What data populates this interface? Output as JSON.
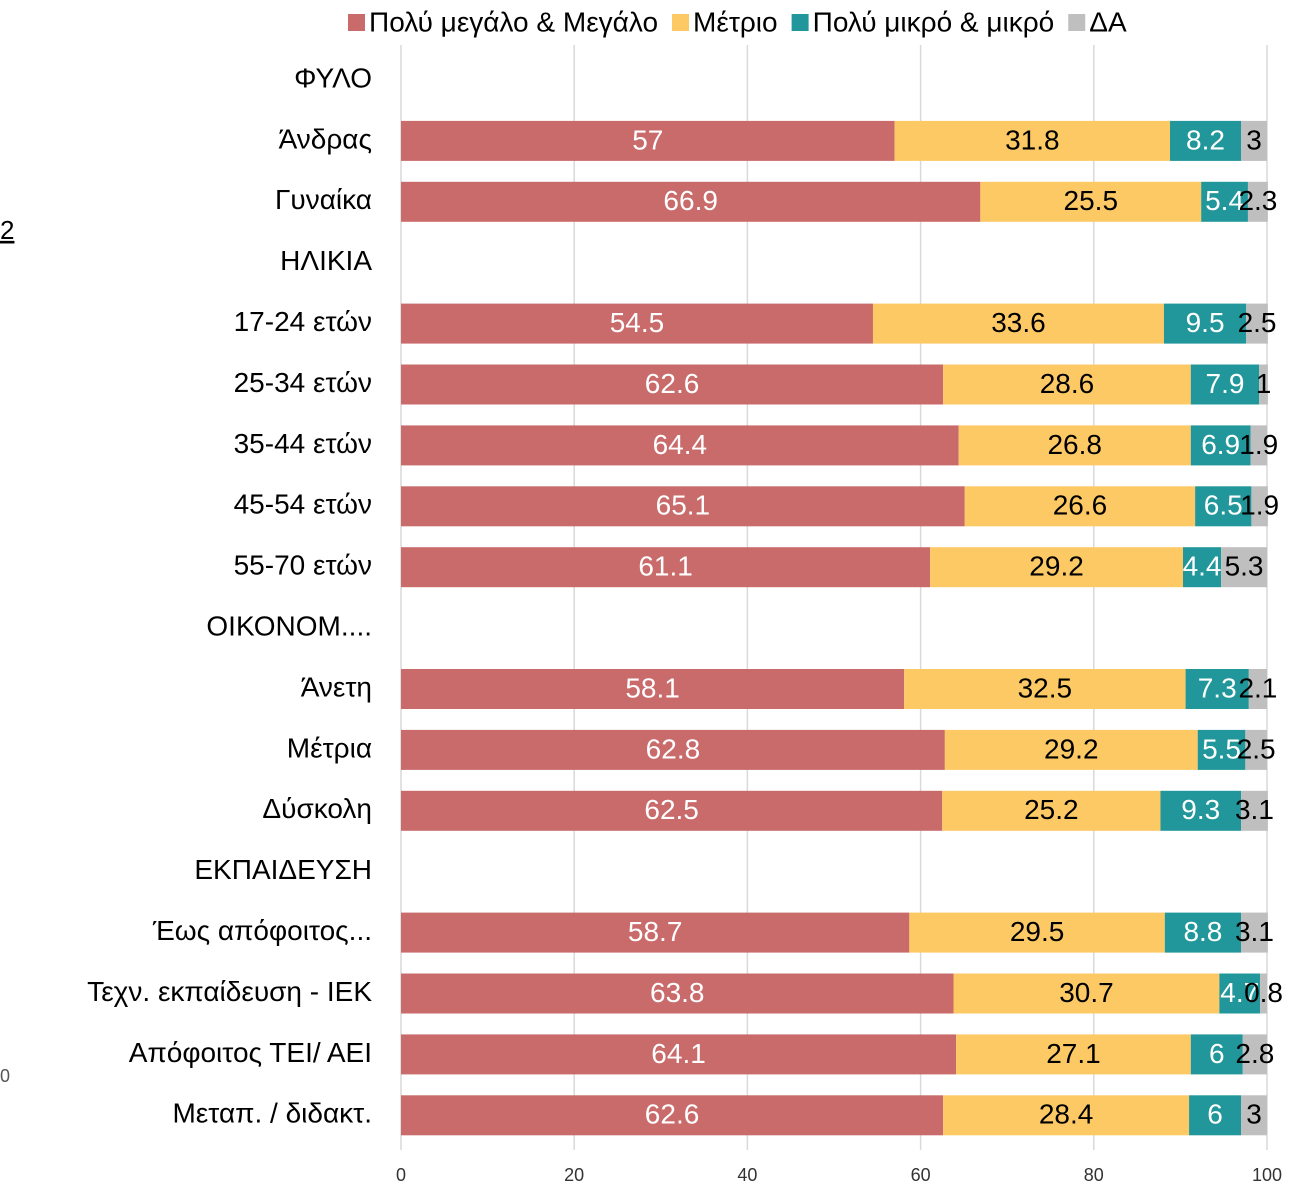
{
  "chart_data": {
    "type": "stacked-barh",
    "categories": [
      "ΦΥΛΟ",
      "Άνδρας",
      "Γυναίκα",
      "ΗΛΙΚΙΑ",
      "17-24 ετών",
      "25-34 ετών",
      "35-44 ετών",
      "45-54 ετών",
      "55-70 ετών",
      "ΟΙΚΟΝΟΜ....",
      "Άνετη",
      "Μέτρια",
      "Δύσκολη",
      "ΕΚΠΑΙΔΕΥΣΗ",
      "Έως απόφοιτος...",
      "Τεχν. εκπαίδευση - ΙΕΚ",
      "Απόφοιτος ΤΕΙ/ ΑΕΙ",
      "Μεταπ. / διδακτ."
    ],
    "series": [
      {
        "name": "Πολύ μεγάλο & Μεγάλο",
        "color": "#c96b6b",
        "label_color": "#ffffff",
        "values": [
          null,
          57,
          66.9,
          null,
          54.5,
          62.6,
          64.4,
          65.1,
          61.1,
          null,
          58.1,
          62.8,
          62.5,
          null,
          58.7,
          63.8,
          64.1,
          62.6
        ]
      },
      {
        "name": "Μέτριο",
        "color": "#fdc965",
        "label_color": "#000000",
        "values": [
          null,
          31.8,
          25.5,
          null,
          33.6,
          28.6,
          26.8,
          26.6,
          29.2,
          null,
          32.5,
          29.2,
          25.2,
          null,
          29.5,
          30.7,
          27.1,
          28.4
        ]
      },
      {
        "name": "Πολύ μικρό & μικρό",
        "color": "#21979b",
        "label_color": "#ffffff",
        "values": [
          null,
          8.2,
          5.4,
          null,
          9.5,
          7.9,
          6.9,
          6.5,
          4.4,
          null,
          7.3,
          5.5,
          9.3,
          null,
          8.8,
          4.7,
          6,
          6
        ]
      },
      {
        "name": "ΔΑ",
        "color": "#bfbfbf",
        "label_color": "#000000",
        "values": [
          null,
          3,
          2.3,
          null,
          2.5,
          1,
          1.9,
          1.9,
          5.3,
          null,
          2.1,
          2.5,
          3.1,
          null,
          3.1,
          0.8,
          2.8,
          3
        ]
      }
    ],
    "xlim": [
      0,
      100
    ],
    "xticks": [
      0,
      20,
      40,
      60,
      80,
      100
    ],
    "grid": true,
    "legend": "top-right",
    "annotations": [
      "2",
      "0"
    ]
  }
}
